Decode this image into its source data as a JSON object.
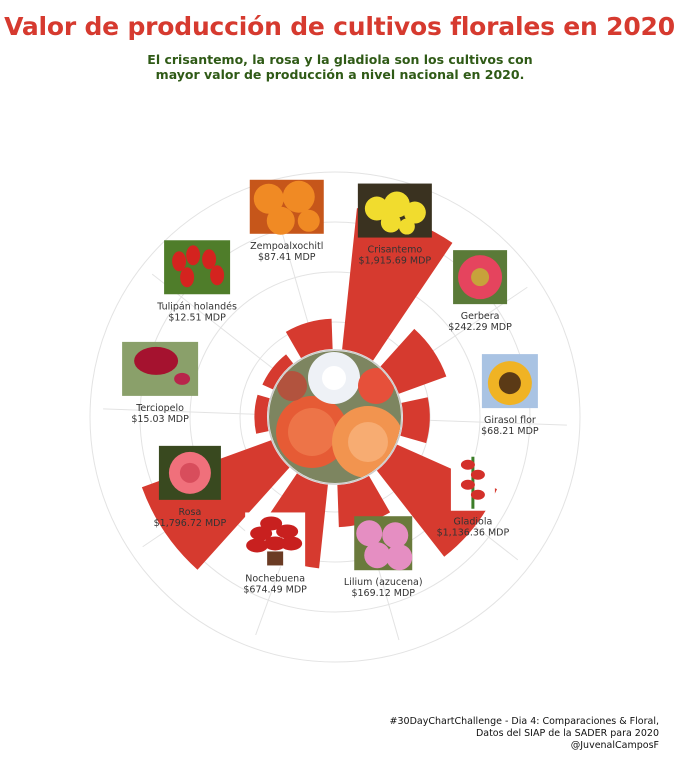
{
  "title": "Valor de producción de cultivos florales en 2020",
  "subtitle_line1": "El crisantemo, la rosa y la gladiola son los cultivos con",
  "subtitle_line2": "mayor valor de producción a nivel nacional en 2020.",
  "caption_line1": "#30DayChartChallenge - Dia 4: Comparaciones & Floral,",
  "caption_line2": "Datos del SIAP de la SADER para 2020",
  "caption_line3": "@JuvenalCamposF",
  "colors": {
    "bar": "#d63a2f",
    "title": "#d63a2f",
    "subtitle": "#2f5a16",
    "grid": "#e3e3e3"
  },
  "chart_data": {
    "type": "bar",
    "coordinate_system": "polar",
    "unit": "MDP",
    "categories": [
      "Crisantemo",
      "Gerbera",
      "Girasol flor",
      "Gladiola",
      "Lilium (azucena)",
      "Nochebuena",
      "Rosa",
      "Terciopelo",
      "Tulipán holandés",
      "Zempoalxochitl"
    ],
    "values": [
      1915.69,
      242.29,
      68.21,
      1136.36,
      169.12,
      674.49,
      1796.72,
      15.03,
      12.51,
      87.41
    ],
    "value_labels": [
      "$1,915.69 MDP",
      "$242.29 MDP",
      "$68.21 MDP",
      "$1,136.36 MDP",
      "$169.12 MDP",
      "$674.49 MDP",
      "$1,796.72 MDP",
      "$15.03 MDP",
      "$12.51 MDP",
      "$87.41 MDP"
    ],
    "icons": [
      "yellow-chrysanthemum-icon",
      "pink-gerbera-icon",
      "sunflower-icon",
      "gladiolus-icon",
      "pink-lily-icon",
      "poinsettia-icon",
      "pink-rose-icon",
      "red-celosia-icon",
      "red-tulips-icon",
      "orange-marigold-icon"
    ],
    "center_icon": "dahlia-bouquet-icon",
    "grid": true,
    "legend": "none"
  }
}
